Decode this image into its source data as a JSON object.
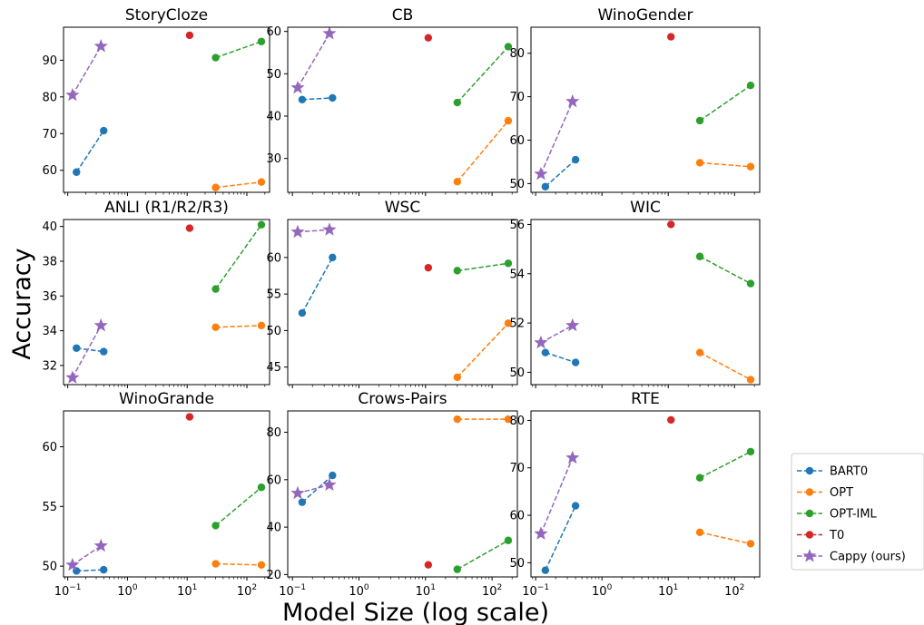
{
  "figure": {
    "ylabel": "Accuracy",
    "xlabel": "Model Size (log scale)",
    "xticks": [
      {
        "v": 0.1,
        "base": "10",
        "exp": "−1"
      },
      {
        "v": 1,
        "base": "10",
        "exp": "0"
      },
      {
        "v": 10,
        "base": "10",
        "exp": "1"
      },
      {
        "v": 100,
        "base": "10",
        "exp": "2"
      }
    ],
    "xlim": [
      0.085,
      240
    ],
    "xscale": "log"
  },
  "legend": {
    "placement": "right-bottom",
    "entries": [
      {
        "label": "BART0",
        "color": "#1f77b4",
        "marker": "circle"
      },
      {
        "label": "OPT",
        "color": "#ff7f0e",
        "marker": "circle"
      },
      {
        "label": "OPT-IML",
        "color": "#2ca02c",
        "marker": "circle"
      },
      {
        "label": "T0",
        "color": "#d62728",
        "marker": "circle"
      },
      {
        "label": "Cappy (ours)",
        "color": "#9467bd",
        "marker": "star"
      }
    ]
  },
  "chart_data": [
    {
      "type": "line",
      "title": "StoryCloze",
      "ylim": [
        54,
        99
      ],
      "yticks": [
        60,
        70,
        80,
        90
      ],
      "series": [
        {
          "name": "BART0",
          "x": [
            0.14,
            0.4
          ],
          "y": [
            59.5,
            70.8
          ]
        },
        {
          "name": "OPT",
          "x": [
            30,
            175
          ],
          "y": [
            55.3,
            56.8
          ]
        },
        {
          "name": "OPT-IML",
          "x": [
            30,
            175
          ],
          "y": [
            90.7,
            95.1
          ]
        },
        {
          "name": "T0",
          "x": [
            11
          ],
          "y": [
            96.8
          ]
        },
        {
          "name": "Cappy (ours)",
          "x": [
            0.12,
            0.36
          ],
          "y": [
            80.5,
            93.8
          ]
        }
      ]
    },
    {
      "type": "line",
      "title": "CB",
      "ylim": [
        22,
        61
      ],
      "yticks": [
        30,
        40,
        50,
        60
      ],
      "series": [
        {
          "name": "BART0",
          "x": [
            0.14,
            0.4
          ],
          "y": [
            43.9,
            44.3
          ]
        },
        {
          "name": "OPT",
          "x": [
            30,
            175
          ],
          "y": [
            24.5,
            38.9
          ]
        },
        {
          "name": "OPT-IML",
          "x": [
            30,
            175
          ],
          "y": [
            43.2,
            56.4
          ]
        },
        {
          "name": "T0",
          "x": [
            11
          ],
          "y": [
            58.5
          ]
        },
        {
          "name": "Cappy (ours)",
          "x": [
            0.12,
            0.36
          ],
          "y": [
            46.7,
            59.5
          ]
        }
      ]
    },
    {
      "type": "line",
      "title": "WinoGender",
      "ylim": [
        48,
        86
      ],
      "yticks": [
        50,
        60,
        70,
        80
      ],
      "series": [
        {
          "name": "BART0",
          "x": [
            0.14,
            0.4
          ],
          "y": [
            49.3,
            55.5
          ]
        },
        {
          "name": "OPT",
          "x": [
            30,
            175
          ],
          "y": [
            54.8,
            53.9
          ]
        },
        {
          "name": "OPT-IML",
          "x": [
            30,
            175
          ],
          "y": [
            64.5,
            72.6
          ]
        },
        {
          "name": "T0",
          "x": [
            11
          ],
          "y": [
            83.8
          ]
        },
        {
          "name": "Cappy (ours)",
          "x": [
            0.12,
            0.36
          ],
          "y": [
            52.2,
            68.9
          ]
        }
      ]
    },
    {
      "type": "line",
      "title": "ANLI (R1/R2/R3)",
      "ylim": [
        30.9,
        40.4
      ],
      "yticks": [
        32,
        34,
        36,
        38,
        40
      ],
      "series": [
        {
          "name": "BART0",
          "x": [
            0.14,
            0.4
          ],
          "y": [
            33.0,
            32.8
          ]
        },
        {
          "name": "OPT",
          "x": [
            30,
            175
          ],
          "y": [
            34.2,
            34.3
          ]
        },
        {
          "name": "OPT-IML",
          "x": [
            30,
            175
          ],
          "y": [
            36.4,
            40.1
          ]
        },
        {
          "name": "T0",
          "x": [
            11
          ],
          "y": [
            39.9
          ]
        },
        {
          "name": "Cappy (ours)",
          "x": [
            0.12,
            0.36
          ],
          "y": [
            31.3,
            34.3
          ]
        }
      ]
    },
    {
      "type": "line",
      "title": "WSC",
      "ylim": [
        42.6,
        65.2
      ],
      "yticks": [
        45,
        50,
        55,
        60
      ],
      "series": [
        {
          "name": "BART0",
          "x": [
            0.14,
            0.4
          ],
          "y": [
            52.4,
            60.0
          ]
        },
        {
          "name": "OPT",
          "x": [
            30,
            175
          ],
          "y": [
            43.6,
            51.0
          ]
        },
        {
          "name": "OPT-IML",
          "x": [
            30,
            175
          ],
          "y": [
            58.2,
            59.2
          ]
        },
        {
          "name": "T0",
          "x": [
            11
          ],
          "y": [
            58.6
          ]
        },
        {
          "name": "Cappy (ours)",
          "x": [
            0.12,
            0.36
          ],
          "y": [
            63.5,
            63.8
          ]
        }
      ]
    },
    {
      "type": "line",
      "title": "WIC",
      "ylim": [
        49.5,
        56.2
      ],
      "yticks": [
        50,
        52,
        54,
        56
      ],
      "series": [
        {
          "name": "BART0",
          "x": [
            0.14,
            0.4
          ],
          "y": [
            50.8,
            50.4
          ]
        },
        {
          "name": "OPT",
          "x": [
            30,
            175
          ],
          "y": [
            50.8,
            49.7
          ]
        },
        {
          "name": "OPT-IML",
          "x": [
            30,
            175
          ],
          "y": [
            54.7,
            53.6
          ]
        },
        {
          "name": "T0",
          "x": [
            11
          ],
          "y": [
            56.0
          ]
        },
        {
          "name": "Cappy (ours)",
          "x": [
            0.12,
            0.36
          ],
          "y": [
            51.2,
            51.9
          ]
        }
      ]
    },
    {
      "type": "line",
      "title": "WinoGrande",
      "ylim": [
        49.1,
        63.0
      ],
      "yticks": [
        50,
        55,
        60
      ],
      "series": [
        {
          "name": "BART0",
          "x": [
            0.14,
            0.4
          ],
          "y": [
            49.6,
            49.7
          ]
        },
        {
          "name": "OPT",
          "x": [
            30,
            175
          ],
          "y": [
            50.2,
            50.1
          ]
        },
        {
          "name": "OPT-IML",
          "x": [
            30,
            175
          ],
          "y": [
            53.4,
            56.6
          ]
        },
        {
          "name": "T0",
          "x": [
            11
          ],
          "y": [
            62.5
          ]
        },
        {
          "name": "Cappy (ours)",
          "x": [
            0.12,
            0.36
          ],
          "y": [
            50.1,
            51.7
          ]
        }
      ]
    },
    {
      "type": "line",
      "title": "Crows-Pairs",
      "ylim": [
        19,
        89
      ],
      "yticks": [
        20,
        40,
        60,
        80
      ],
      "series": [
        {
          "name": "BART0",
          "x": [
            0.14,
            0.4
          ],
          "y": [
            50.5,
            61.8
          ]
        },
        {
          "name": "OPT",
          "x": [
            30,
            175
          ],
          "y": [
            85.5,
            85.5
          ]
        },
        {
          "name": "OPT-IML",
          "x": [
            30,
            175
          ],
          "y": [
            22.2,
            34.4
          ]
        },
        {
          "name": "T0",
          "x": [
            11
          ],
          "y": [
            24.1
          ]
        },
        {
          "name": "Cappy (ours)",
          "x": [
            0.12,
            0.36
          ],
          "y": [
            54.3,
            57.8
          ]
        }
      ]
    },
    {
      "type": "line",
      "title": "RTE",
      "ylim": [
        47,
        82
      ],
      "yticks": [
        50,
        60,
        70,
        80
      ],
      "series": [
        {
          "name": "BART0",
          "x": [
            0.14,
            0.4
          ],
          "y": [
            48.4,
            62.0
          ]
        },
        {
          "name": "OPT",
          "x": [
            30,
            175
          ],
          "y": [
            56.4,
            54.0
          ]
        },
        {
          "name": "OPT-IML",
          "x": [
            30,
            175
          ],
          "y": [
            67.9,
            73.4
          ]
        },
        {
          "name": "T0",
          "x": [
            11
          ],
          "y": [
            80.1
          ]
        },
        {
          "name": "Cappy (ours)",
          "x": [
            0.12,
            0.36
          ],
          "y": [
            56.1,
            72.1
          ]
        }
      ]
    }
  ]
}
